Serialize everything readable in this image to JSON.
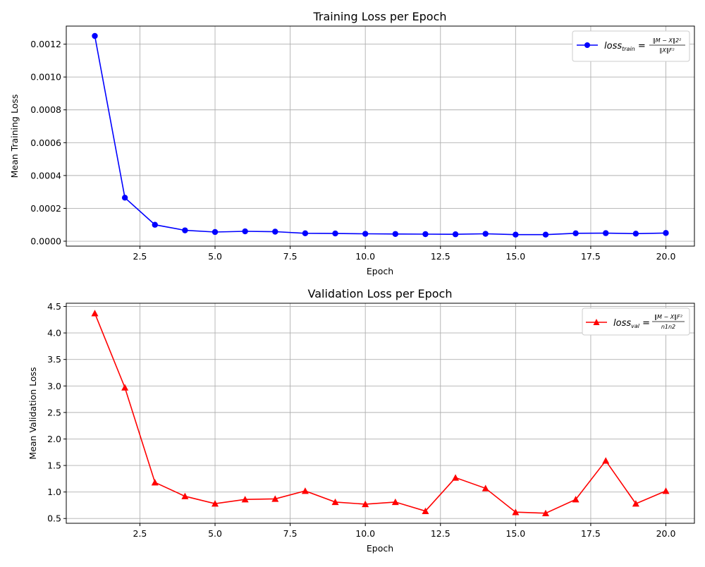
{
  "chart_data": [
    {
      "type": "line",
      "title": "Training Loss per Epoch",
      "xlabel": "Epoch",
      "ylabel": "Mean Training Loss",
      "xlim": [
        0.05,
        20.95
      ],
      "ylim": [
        -3e-05,
        0.00131
      ],
      "xticks": [
        2.5,
        5.0,
        7.5,
        10.0,
        12.5,
        15.0,
        17.5,
        20.0
      ],
      "xtick_labels": [
        "2.5",
        "5.0",
        "7.5",
        "10.0",
        "12.5",
        "15.0",
        "17.5",
        "20.0"
      ],
      "yticks": [
        0.0,
        0.0002,
        0.0004,
        0.0006,
        0.0008,
        0.001,
        0.0012
      ],
      "ytick_labels": [
        "0.0000",
        "0.0002",
        "0.0004",
        "0.0006",
        "0.0008",
        "0.0010",
        "0.0012"
      ],
      "grid": true,
      "legend_position": "top-right",
      "color": "#0000ff",
      "marker": "circle",
      "series": [
        {
          "name": "loss_train = ‖M − X‖2² / ‖X‖F²",
          "legend_main": "loss",
          "legend_sub": "train",
          "legend_eq": " = ",
          "legend_num": "‖M − X‖2²",
          "legend_den": "‖X‖F²",
          "x": [
            1,
            2,
            3,
            4,
            5,
            6,
            7,
            8,
            9,
            10,
            11,
            12,
            13,
            14,
            15,
            16,
            17,
            18,
            19,
            20
          ],
          "y": [
            0.00125,
            0.000265,
            0.0001,
            6.6e-05,
            5.6e-05,
            6e-05,
            5.8e-05,
            4.8e-05,
            4.7e-05,
            4.5e-05,
            4.4e-05,
            4.3e-05,
            4.2e-05,
            4.5e-05,
            4e-05,
            4e-05,
            4.8e-05,
            4.9e-05,
            4.6e-05,
            5e-05
          ]
        }
      ]
    },
    {
      "type": "line",
      "title": "Validation Loss per Epoch",
      "xlabel": "Epoch",
      "ylabel": "Mean Validation Loss",
      "xlim": [
        0.05,
        20.95
      ],
      "ylim": [
        0.41,
        4.56
      ],
      "xticks": [
        2.5,
        5.0,
        7.5,
        10.0,
        12.5,
        15.0,
        17.5,
        20.0
      ],
      "xtick_labels": [
        "2.5",
        "5.0",
        "7.5",
        "10.0",
        "12.5",
        "15.0",
        "17.5",
        "20.0"
      ],
      "yticks": [
        0.5,
        1.0,
        1.5,
        2.0,
        2.5,
        3.0,
        3.5,
        4.0,
        4.5
      ],
      "ytick_labels": [
        "0.5",
        "1.0",
        "1.5",
        "2.0",
        "2.5",
        "3.0",
        "3.5",
        "4.0",
        "4.5"
      ],
      "grid": true,
      "legend_position": "top-right",
      "color": "#ff0000",
      "marker": "triangle",
      "series": [
        {
          "name": "loss_val = ‖M − X‖F² / n1n2",
          "legend_main": "loss",
          "legend_sub": "val",
          "legend_eq": " = ",
          "legend_num": "‖M − X‖F²",
          "legend_den": "n1n2",
          "x": [
            1,
            2,
            3,
            4,
            5,
            6,
            7,
            8,
            9,
            10,
            11,
            12,
            13,
            14,
            15,
            16,
            17,
            18,
            19,
            20
          ],
          "y": [
            4.37,
            2.97,
            1.18,
            0.92,
            0.78,
            0.86,
            0.87,
            1.02,
            0.81,
            0.77,
            0.81,
            0.64,
            1.27,
            1.07,
            0.62,
            0.6,
            0.86,
            1.59,
            0.78,
            1.02
          ]
        }
      ]
    }
  ]
}
